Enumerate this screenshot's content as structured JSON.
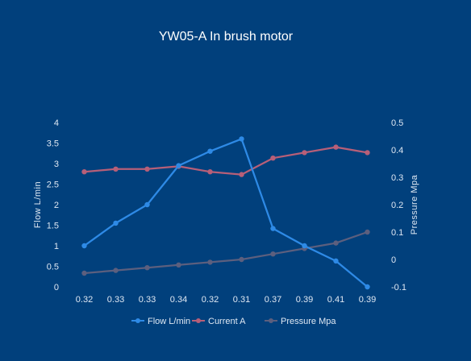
{
  "chart_data": {
    "type": "line",
    "title": "YW05-A In brush motor",
    "categories": [
      "0.32",
      "0.33",
      "0.33",
      "0.34",
      "0.32",
      "0.31",
      "0.37",
      "0.39",
      "0.41",
      "0.39"
    ],
    "y_left": {
      "label": "Flow  L/min",
      "range": [
        0,
        4
      ],
      "ticks": [
        "0",
        "0.5",
        "1",
        "1.5",
        "2",
        "2.5",
        "3",
        "3.5",
        "4"
      ]
    },
    "y_right": {
      "label": "Pressure  Mpa",
      "range": [
        -0.1,
        0.5
      ],
      "ticks": [
        "-0.1",
        "0",
        "0.1",
        "0.2",
        "0.3",
        "0.4",
        "0.5"
      ]
    },
    "series": [
      {
        "name": "Flow L/min",
        "axis": "left",
        "color": "#2e8ae6",
        "values": [
          1.0,
          1.55,
          2.0,
          2.95,
          3.3,
          3.6,
          1.42,
          1.0,
          0.63,
          0.0
        ]
      },
      {
        "name": "Current A",
        "axis": "right",
        "color": "#b75f78",
        "values": [
          0.32,
          0.33,
          0.33,
          0.34,
          0.32,
          0.31,
          0.37,
          0.39,
          0.41,
          0.39
        ]
      },
      {
        "name": "Pressure Mpa",
        "axis": "right",
        "color": "#5c5f7e",
        "values": [
          -0.05,
          -0.04,
          -0.03,
          -0.02,
          -0.01,
          0.0,
          0.02,
          0.04,
          0.06,
          0.1
        ]
      }
    ],
    "grid": false,
    "legend": "bottom"
  }
}
